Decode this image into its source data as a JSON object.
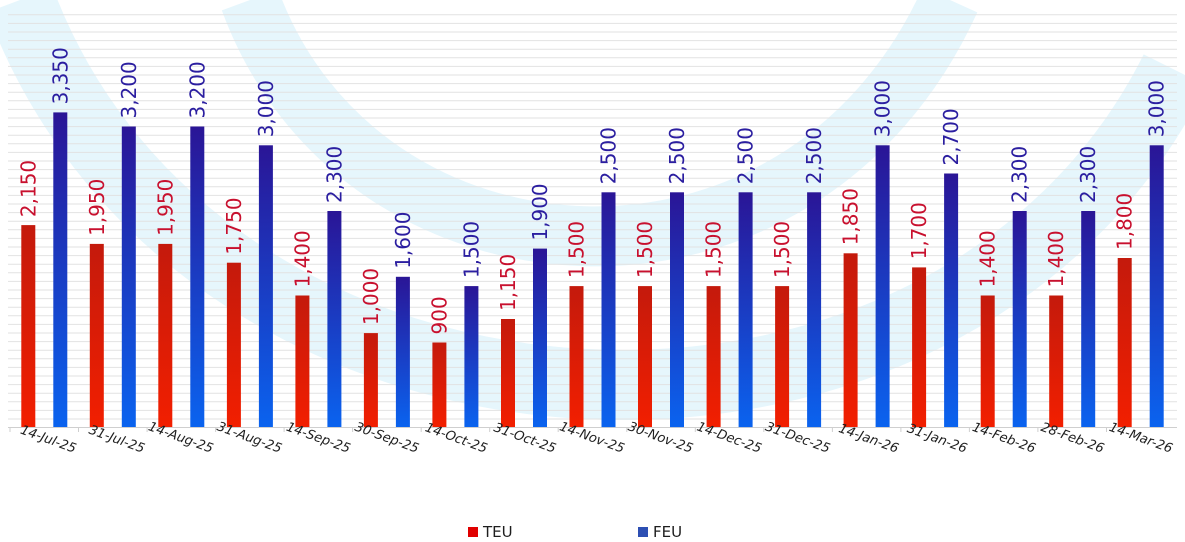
{
  "colors": {
    "teu_top": "#c41a0c",
    "teu_bottom": "#f21f00",
    "feu_top": "#2a1596",
    "feu_bottom": "#0a63ef",
    "teu_label": "#c8102e",
    "feu_label": "#2b1ea0",
    "legend_teu": "#e00000",
    "legend_feu": "#2d4fb3",
    "watermark": "#e6f6fc"
  },
  "chart_data": {
    "type": "bar",
    "categories": [
      "14-Jul-25",
      "31-Jul-25",
      "14-Aug-25",
      "31-Aug-25",
      "14-Sep-25",
      "30-Sep-25",
      "14-Oct-25",
      "31-Oct-25",
      "14-Nov-25",
      "30-Nov-25",
      "14-Dec-25",
      "31-Dec-25",
      "14-Jan-26",
      "31-Jan-26",
      "14-Feb-26",
      "28-Feb-26",
      "14-Mar-26"
    ],
    "series": [
      {
        "name": "TEU",
        "values": [
          2150,
          1950,
          1950,
          1750,
          1400,
          1000,
          900,
          1150,
          1500,
          1500,
          1500,
          1500,
          1850,
          1700,
          1400,
          1400,
          1800
        ],
        "labels": [
          "2,150",
          "1,950",
          "1,950",
          "1,750",
          "1,400",
          "1,000",
          "900",
          "1,150",
          "1,500",
          "1,500",
          "1,500",
          "1,500",
          "1,850",
          "1,700",
          "1,400",
          "1,400",
          "1,800"
        ]
      },
      {
        "name": "FEU",
        "values": [
          3350,
          3200,
          3200,
          3000,
          2300,
          1600,
          1500,
          1900,
          2500,
          2500,
          2500,
          2500,
          3000,
          2700,
          2300,
          2300,
          3000
        ],
        "labels": [
          "3,350",
          "3,200",
          "3,200",
          "3,000",
          "2,300",
          "1,600",
          "1,500",
          "1,900",
          "2,500",
          "2,500",
          "2,500",
          "2,500",
          "3,000",
          "2,700",
          "2,300",
          "2,300",
          "3,000"
        ]
      }
    ],
    "title": "",
    "xlabel": "",
    "ylabel": "",
    "ylim": [
      0,
      4500
    ],
    "grid": true,
    "legend_position": "bottom"
  }
}
